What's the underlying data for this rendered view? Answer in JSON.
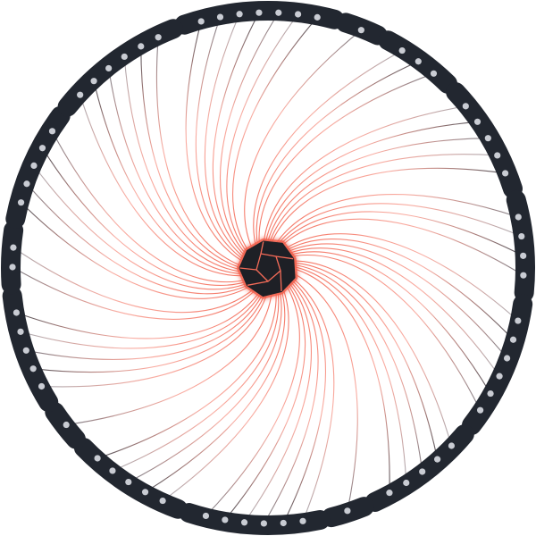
{
  "colors": {
    "background": "#ffffff",
    "ring_segment": "#222730",
    "port_dot": "#c9ccd3",
    "hub_fill": "#1e2026",
    "hub_glow": "#f25f4c",
    "hub_edges": "#f46b58",
    "wire_near_hub": "#f46b58",
    "wire_dark": "#3a3e46",
    "wire_light": "#d6d8dd"
  },
  "icons": {
    "hub": "dodecahedron-icon",
    "port": "port-dot-icon"
  },
  "diagram": {
    "type": "radial-connector-wheel",
    "hub": {
      "label": ""
    },
    "segments": [
      {
        "ports": 7
      },
      {
        "ports": 1
      },
      {
        "ports": 3
      },
      {
        "ports": 5
      },
      {
        "ports": 4
      },
      {
        "ports": 6
      },
      {
        "ports": 5
      },
      {
        "ports": 1
      },
      {
        "ports": 6
      },
      {
        "ports": 5
      },
      {
        "ports": 1
      },
      {
        "ports": 5
      },
      {
        "ports": 2
      },
      {
        "ports": 5
      },
      {
        "ports": 6
      }
    ]
  }
}
